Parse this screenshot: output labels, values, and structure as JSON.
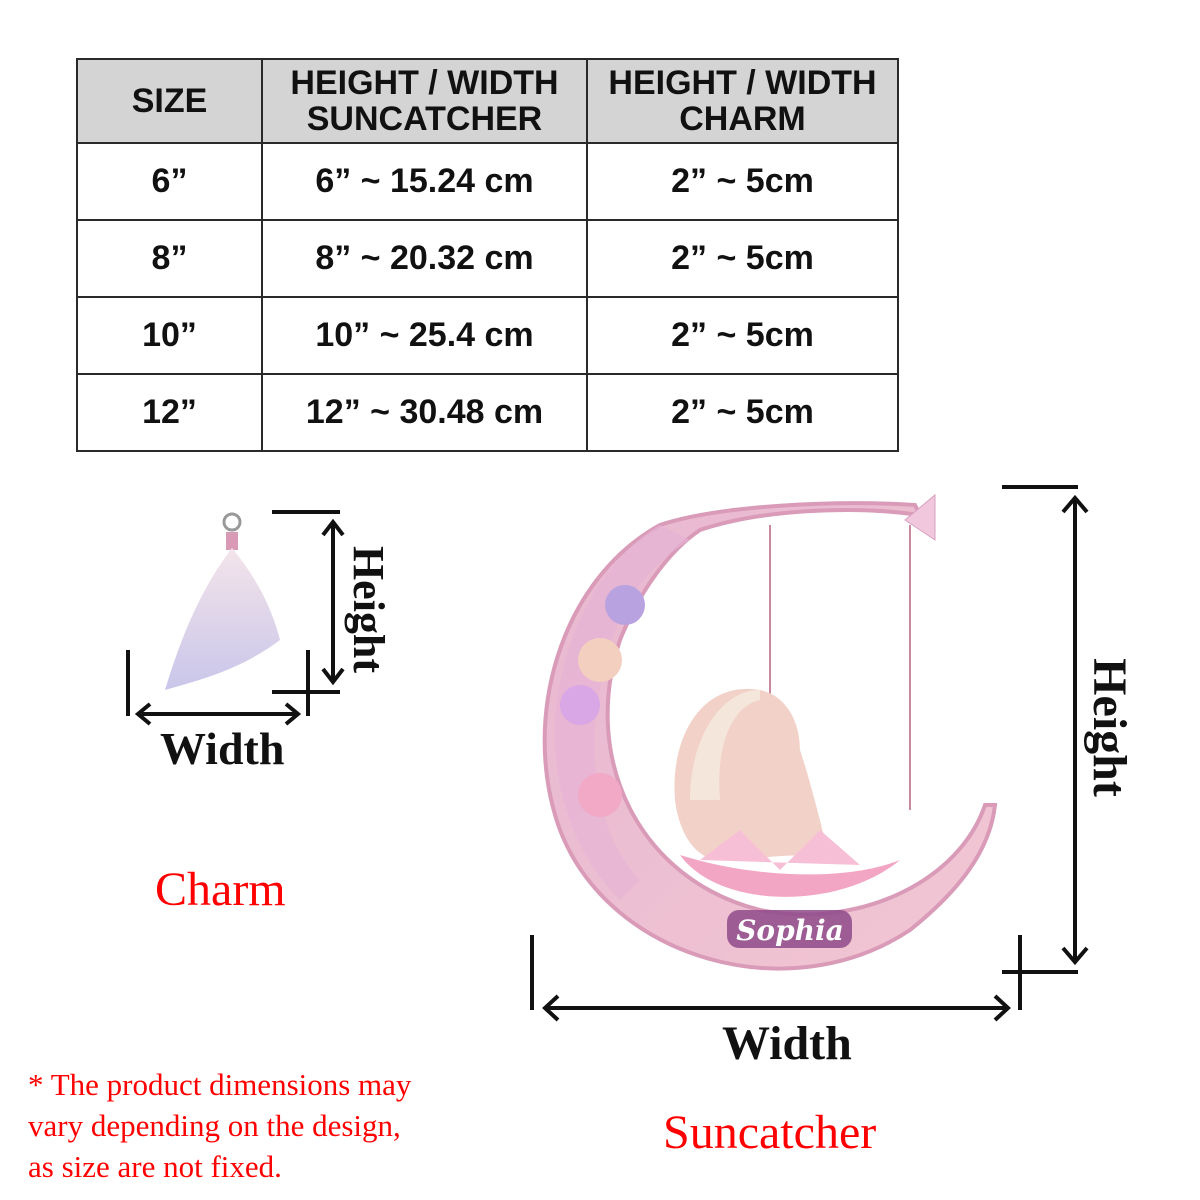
{
  "table": {
    "headers": [
      "SIZE",
      "HEIGHT / WIDTH SUNCATCHER",
      "HEIGHT / WIDTH CHARM"
    ],
    "rows": [
      [
        "6”",
        "6” ~ 15.24 cm",
        "2” ~ 5cm"
      ],
      [
        "8”",
        "8” ~ 20.32 cm",
        "2” ~ 5cm"
      ],
      [
        "10”",
        "10” ~ 25.4 cm",
        "2” ~ 5cm"
      ],
      [
        "12”",
        "12” ~ 30.48 cm",
        "2” ~ 5cm"
      ]
    ],
    "header_color": "#d4d4d4"
  },
  "charm": {
    "height_label": "Height",
    "width_label": "Width",
    "caption": "Charm"
  },
  "suncatcher": {
    "height_label": "Height",
    "width_label": "Width",
    "caption": "Suncatcher",
    "name_text": "Sophia"
  },
  "note": [
    "* The product dimensions may",
    "vary depending on the design,",
    "as size are not fixed."
  ],
  "accent_color": "#ff0000"
}
